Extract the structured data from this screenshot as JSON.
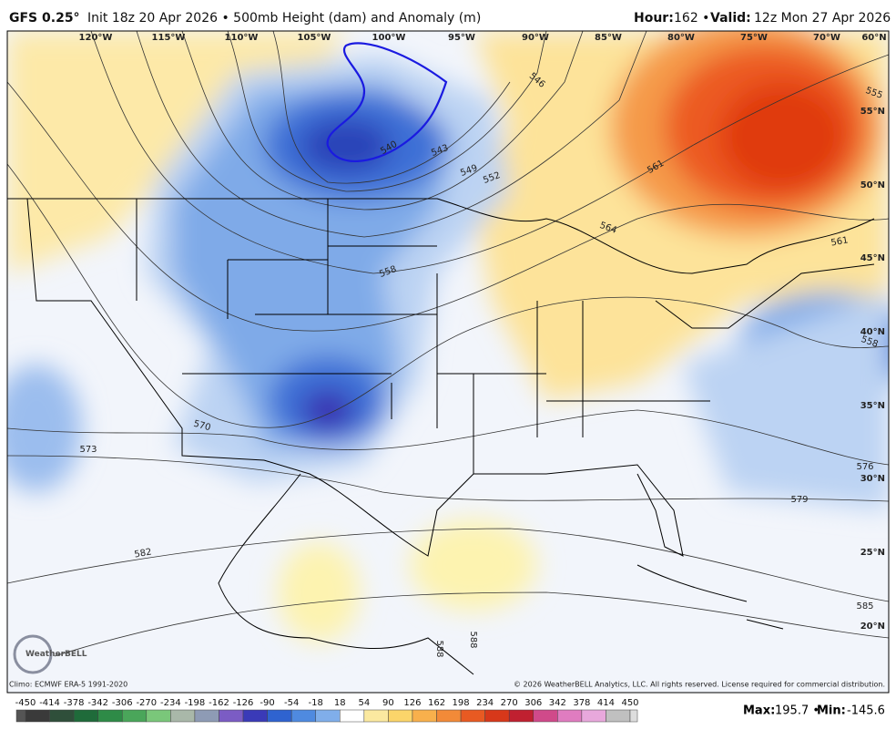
{
  "header": {
    "model": "GFS 0.25°",
    "init": "Init 18z 20 Apr 2026 • 500mb Height (dam) and Anomaly (m)",
    "hour_label": "Hour:",
    "hour": "162 •",
    "valid_label": "Valid:",
    "valid": "12z Mon 27 Apr 2026"
  },
  "map": {
    "longitudes": [
      "120°W",
      "115°W",
      "110°W",
      "105°W",
      "100°W",
      "95°W",
      "90°W",
      "85°W",
      "80°W",
      "75°W",
      "70°W",
      "60°N"
    ],
    "latitudes": [
      "55°N",
      "50°N",
      "45°N",
      "40°N",
      "35°N",
      "30°N",
      "25°N",
      "20°N"
    ],
    "contour_labels": [
      "540",
      "543",
      "546",
      "549",
      "552",
      "555",
      "558",
      "558",
      "561",
      "561",
      "564",
      "570",
      "573",
      "576",
      "579",
      "582",
      "585",
      "588",
      "588"
    ],
    "logo": "WeatherBELL"
  },
  "footer": {
    "climo": "Climo: ECMWF ERA-5 1991-2020",
    "copyright": "© 2026 WeatherBELL Analytics, LLC. All rights reserved. License required for commercial distribution."
  },
  "colorbar": {
    "ticks": [
      -450,
      -414,
      -378,
      -342,
      -306,
      -270,
      -234,
      -198,
      -162,
      -126,
      -90,
      -54,
      -18,
      18,
      54,
      90,
      126,
      162,
      198,
      234,
      270,
      306,
      342,
      378,
      414,
      450
    ]
  },
  "stats": {
    "max_label": "Max:",
    "max": "195.7 •",
    "min_label": "Min:",
    "min": "-145.6"
  }
}
